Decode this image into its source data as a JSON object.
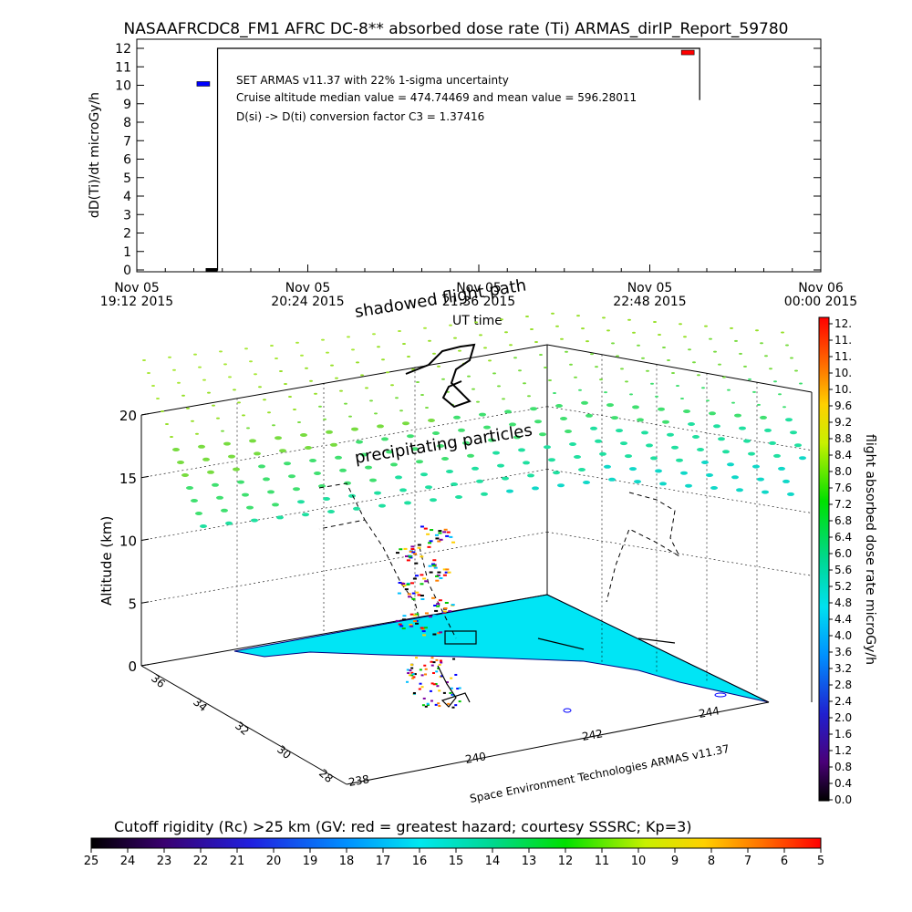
{
  "title": "NASAAFRCDC8_FM1 AFRC DC-8** absorbed dose rate (Ti) ARMAS_dirIP_Report_59780",
  "chart_data": [
    {
      "type": "line",
      "ylabel": "dD(Ti)/dt microGy/h",
      "xlabel": "UT time",
      "ylim": [
        0,
        12
      ],
      "yticks": [
        "0",
        "1",
        "2",
        "3",
        "4",
        "5",
        "6",
        "7",
        "8",
        "9",
        "10",
        "11",
        "12"
      ],
      "xticks": [
        {
          "date": "Nov 05",
          "time": "19:12 2015"
        },
        {
          "date": "Nov 05",
          "time": "20:24 2015"
        },
        {
          "date": "Nov 05",
          "time": "21:36 2015"
        },
        {
          "date": "Nov 05",
          "time": "22:48 2015"
        },
        {
          "date": "Nov 06",
          "time": "00:00 2015"
        }
      ],
      "annotations": [
        "SET ARMAS v11.37 with 22% 1-sigma uncertainty",
        "Cruise altitude median value = 474.74469 and mean value = 596.28011",
        "D(si) -> D(ti) conversion factor C3 = 1.37416"
      ],
      "series": [
        {
          "color": "#000000",
          "points": [
            {
              "x": "19:41",
              "y": 0
            },
            {
              "x": "19:46",
              "y": 0
            },
            {
              "x": "19:46",
              "y": 12
            },
            {
              "x": "23:09",
              "y": 12
            },
            {
              "x": "23:09",
              "y": 9.2
            }
          ]
        },
        {
          "color": "#0000ff",
          "points": [
            {
              "x": "19:40",
              "y": 10.1
            }
          ]
        },
        {
          "color": "#ff0000",
          "points": [
            {
              "x": "23:04",
              "y": 11.8
            }
          ]
        }
      ]
    },
    {
      "type": "scatter",
      "zlabel": "Altitude (km)",
      "zticks": [
        "0",
        "5",
        "10",
        "15",
        "20"
      ],
      "lat_ticks": [
        "36",
        "34",
        "32",
        "30",
        "28"
      ],
      "lon_ticks": [
        "238",
        "240",
        "242",
        "244"
      ],
      "labels": [
        "shadowed flight path",
        "precipitating particles"
      ],
      "credit": "Space Environment Technologies ARMAS v11.37",
      "colorbar": {
        "label": "flight absorbed dose rate microGy/h",
        "ticks": [
          "12.",
          "11.",
          "11.",
          "10.",
          "10.",
          "9.6",
          "9.2",
          "8.8",
          "8.4",
          "8.0",
          "7.6",
          "7.2",
          "6.8",
          "6.4",
          "6.0",
          "5.6",
          "5.2",
          "4.8",
          "4.4",
          "4.0",
          "3.6",
          "3.2",
          "2.8",
          "2.4",
          "2.0",
          "1.6",
          "1.2",
          "0.8",
          "0.4",
          "0.0"
        ]
      }
    },
    {
      "type": "heatmap",
      "title": "Cutoff rigidity (Rc) >25 km (GV: red = greatest hazard; courtesy SSSRC; Kp=3)",
      "ticks": [
        "25",
        "24",
        "23",
        "22",
        "21",
        "20",
        "19",
        "18",
        "17",
        "16",
        "15",
        "14",
        "13",
        "12",
        "11",
        "10",
        "9",
        "8",
        "7",
        "6",
        "5"
      ]
    }
  ]
}
